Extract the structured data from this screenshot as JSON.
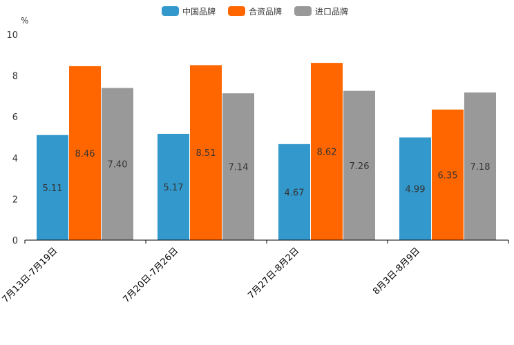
{
  "chart_data": {
    "type": "bar",
    "title": "",
    "unit_label": "%",
    "xlabel": "",
    "ylabel": "%",
    "ylim": [
      0,
      10
    ],
    "yticks": [
      0,
      2,
      4,
      6,
      8,
      10
    ],
    "grid": false,
    "legend_position": "top-center",
    "categories": [
      "7月13日-7月19日",
      "7月20日-7月26日",
      "7月27日-8月2日",
      "8月3日-8月9日"
    ],
    "series": [
      {
        "name": "中国品牌",
        "color": "#3399cc",
        "values": [
          5.11,
          5.17,
          4.67,
          4.99
        ],
        "labels": [
          "5.11",
          "5.17",
          "4.67",
          "4.99"
        ]
      },
      {
        "name": "合资品牌",
        "color": "#ff6600",
        "values": [
          8.46,
          8.51,
          8.62,
          6.35
        ],
        "labels": [
          "8.46",
          "8.51",
          "8.62",
          "6.35"
        ]
      },
      {
        "name": "进口品牌",
        "color": "#999999",
        "values": [
          7.4,
          7.14,
          7.26,
          7.18
        ],
        "labels": [
          "7.40",
          "7.14",
          "7.26",
          "7.18"
        ]
      }
    ]
  }
}
